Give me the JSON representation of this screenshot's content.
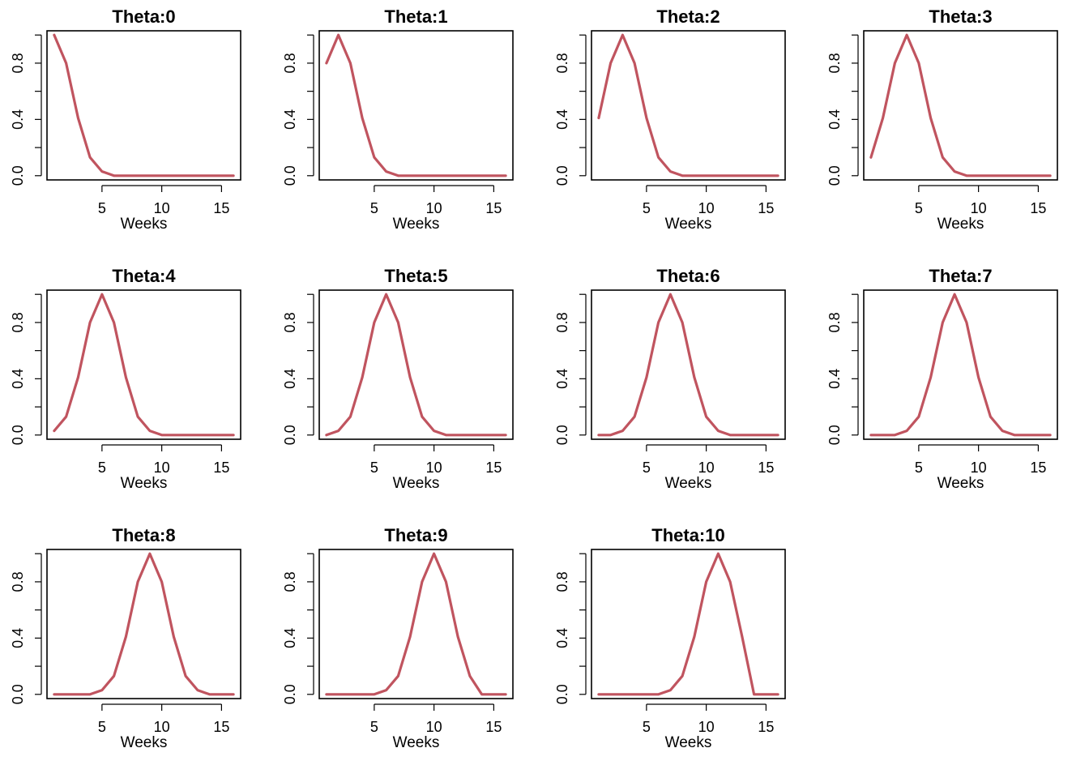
{
  "chart_data": [
    {
      "type": "line",
      "title": "Theta:0",
      "xlabel": "Weeks",
      "ylabel": "",
      "x": [
        1,
        2,
        3,
        4,
        5,
        6,
        7,
        8,
        9,
        10,
        11,
        12,
        13,
        14,
        15,
        16
      ],
      "values": [
        1,
        0.8,
        0.41,
        0.13,
        0.03,
        0,
        0,
        0,
        0,
        0,
        0,
        0,
        0,
        0,
        0,
        0
      ],
      "xticks": [
        5,
        10,
        15
      ],
      "yticks": [
        0.0,
        0.4,
        0.8
      ],
      "ytick_labels": [
        "0.0",
        "0.4",
        "0.8"
      ],
      "xlim": [
        0.4,
        16.6
      ],
      "ylim": [
        -0.03,
        1.03
      ],
      "line_color": "#C0545F"
    },
    {
      "type": "line",
      "title": "Theta:1",
      "xlabel": "Weeks",
      "ylabel": "",
      "x": [
        1,
        2,
        3,
        4,
        5,
        6,
        7,
        8,
        9,
        10,
        11,
        12,
        13,
        14,
        15,
        16
      ],
      "values": [
        0.8,
        1,
        0.8,
        0.41,
        0.13,
        0.03,
        0,
        0,
        0,
        0,
        0,
        0,
        0,
        0,
        0,
        0
      ],
      "xticks": [
        5,
        10,
        15
      ],
      "yticks": [
        0.0,
        0.4,
        0.8
      ],
      "ytick_labels": [
        "0.0",
        "0.4",
        "0.8"
      ],
      "xlim": [
        0.4,
        16.6
      ],
      "ylim": [
        -0.03,
        1.03
      ],
      "line_color": "#C0545F"
    },
    {
      "type": "line",
      "title": "Theta:2",
      "xlabel": "Weeks",
      "ylabel": "",
      "x": [
        1,
        2,
        3,
        4,
        5,
        6,
        7,
        8,
        9,
        10,
        11,
        12,
        13,
        14,
        15,
        16
      ],
      "values": [
        0.41,
        0.8,
        1,
        0.8,
        0.41,
        0.13,
        0.03,
        0,
        0,
        0,
        0,
        0,
        0,
        0,
        0,
        0
      ],
      "xticks": [
        5,
        10,
        15
      ],
      "yticks": [
        0.0,
        0.4,
        0.8
      ],
      "ytick_labels": [
        "0.0",
        "0.4",
        "0.8"
      ],
      "xlim": [
        0.4,
        16.6
      ],
      "ylim": [
        -0.03,
        1.03
      ],
      "line_color": "#C0545F"
    },
    {
      "type": "line",
      "title": "Theta:3",
      "xlabel": "Weeks",
      "ylabel": "",
      "x": [
        1,
        2,
        3,
        4,
        5,
        6,
        7,
        8,
        9,
        10,
        11,
        12,
        13,
        14,
        15,
        16
      ],
      "values": [
        0.13,
        0.41,
        0.8,
        1,
        0.8,
        0.41,
        0.13,
        0.03,
        0,
        0,
        0,
        0,
        0,
        0,
        0,
        0
      ],
      "xticks": [
        5,
        10,
        15
      ],
      "yticks": [
        0.0,
        0.4,
        0.8
      ],
      "ytick_labels": [
        "0.0",
        "0.4",
        "0.8"
      ],
      "xlim": [
        0.4,
        16.6
      ],
      "ylim": [
        -0.03,
        1.03
      ],
      "line_color": "#C0545F"
    },
    {
      "type": "line",
      "title": "Theta:4",
      "xlabel": "Weeks",
      "ylabel": "",
      "x": [
        1,
        2,
        3,
        4,
        5,
        6,
        7,
        8,
        9,
        10,
        11,
        12,
        13,
        14,
        15,
        16
      ],
      "values": [
        0.03,
        0.13,
        0.41,
        0.8,
        1,
        0.8,
        0.41,
        0.13,
        0.03,
        0,
        0,
        0,
        0,
        0,
        0,
        0
      ],
      "xticks": [
        5,
        10,
        15
      ],
      "yticks": [
        0.0,
        0.4,
        0.8
      ],
      "ytick_labels": [
        "0.0",
        "0.4",
        "0.8"
      ],
      "xlim": [
        0.4,
        16.6
      ],
      "ylim": [
        -0.03,
        1.03
      ],
      "line_color": "#C0545F"
    },
    {
      "type": "line",
      "title": "Theta:5",
      "xlabel": "Weeks",
      "ylabel": "",
      "x": [
        1,
        2,
        3,
        4,
        5,
        6,
        7,
        8,
        9,
        10,
        11,
        12,
        13,
        14,
        15,
        16
      ],
      "values": [
        0,
        0.03,
        0.13,
        0.41,
        0.8,
        1,
        0.8,
        0.41,
        0.13,
        0.03,
        0,
        0,
        0,
        0,
        0,
        0
      ],
      "xticks": [
        5,
        10,
        15
      ],
      "yticks": [
        0.0,
        0.4,
        0.8
      ],
      "ytick_labels": [
        "0.0",
        "0.4",
        "0.8"
      ],
      "xlim": [
        0.4,
        16.6
      ],
      "ylim": [
        -0.03,
        1.03
      ],
      "line_color": "#C0545F"
    },
    {
      "type": "line",
      "title": "Theta:6",
      "xlabel": "Weeks",
      "ylabel": "",
      "x": [
        1,
        2,
        3,
        4,
        5,
        6,
        7,
        8,
        9,
        10,
        11,
        12,
        13,
        14,
        15,
        16
      ],
      "values": [
        0,
        0,
        0.03,
        0.13,
        0.41,
        0.8,
        1,
        0.8,
        0.41,
        0.13,
        0.03,
        0,
        0,
        0,
        0,
        0
      ],
      "xticks": [
        5,
        10,
        15
      ],
      "yticks": [
        0.0,
        0.4,
        0.8
      ],
      "ytick_labels": [
        "0.0",
        "0.4",
        "0.8"
      ],
      "xlim": [
        0.4,
        16.6
      ],
      "ylim": [
        -0.03,
        1.03
      ],
      "line_color": "#C0545F"
    },
    {
      "type": "line",
      "title": "Theta:7",
      "xlabel": "Weeks",
      "ylabel": "",
      "x": [
        1,
        2,
        3,
        4,
        5,
        6,
        7,
        8,
        9,
        10,
        11,
        12,
        13,
        14,
        15,
        16
      ],
      "values": [
        0,
        0,
        0,
        0.03,
        0.13,
        0.41,
        0.8,
        1,
        0.8,
        0.41,
        0.13,
        0.03,
        0,
        0,
        0,
        0
      ],
      "xticks": [
        5,
        10,
        15
      ],
      "yticks": [
        0.0,
        0.4,
        0.8
      ],
      "ytick_labels": [
        "0.0",
        "0.4",
        "0.8"
      ],
      "xlim": [
        0.4,
        16.6
      ],
      "ylim": [
        -0.03,
        1.03
      ],
      "line_color": "#C0545F"
    },
    {
      "type": "line",
      "title": "Theta:8",
      "xlabel": "Weeks",
      "ylabel": "",
      "x": [
        1,
        2,
        3,
        4,
        5,
        6,
        7,
        8,
        9,
        10,
        11,
        12,
        13,
        14,
        15,
        16
      ],
      "values": [
        0,
        0,
        0,
        0,
        0.03,
        0.13,
        0.41,
        0.8,
        1,
        0.8,
        0.41,
        0.13,
        0.03,
        0,
        0,
        0
      ],
      "xticks": [
        5,
        10,
        15
      ],
      "yticks": [
        0.0,
        0.4,
        0.8
      ],
      "ytick_labels": [
        "0.0",
        "0.4",
        "0.8"
      ],
      "xlim": [
        0.4,
        16.6
      ],
      "ylim": [
        -0.03,
        1.03
      ],
      "line_color": "#C0545F"
    },
    {
      "type": "line",
      "title": "Theta:9",
      "xlabel": "Weeks",
      "ylabel": "",
      "x": [
        1,
        2,
        3,
        4,
        5,
        6,
        7,
        8,
        9,
        10,
        11,
        12,
        13,
        14,
        15,
        16
      ],
      "values": [
        0,
        0,
        0,
        0,
        0,
        0.03,
        0.13,
        0.41,
        0.8,
        1,
        0.8,
        0.41,
        0.13,
        0,
        0,
        0
      ],
      "xticks": [
        5,
        10,
        15
      ],
      "yticks": [
        0.0,
        0.4,
        0.8
      ],
      "ytick_labels": [
        "0.0",
        "0.4",
        "0.8"
      ],
      "xlim": [
        0.4,
        16.6
      ],
      "ylim": [
        -0.03,
        1.03
      ],
      "line_color": "#C0545F"
    },
    {
      "type": "line",
      "title": "Theta:10",
      "xlabel": "Weeks",
      "ylabel": "",
      "x": [
        1,
        2,
        3,
        4,
        5,
        6,
        7,
        8,
        9,
        10,
        11,
        12,
        13,
        14,
        15,
        16
      ],
      "values": [
        0,
        0,
        0,
        0,
        0,
        0,
        0.03,
        0.13,
        0.41,
        0.8,
        1,
        0.8,
        0.41,
        0,
        0,
        0
      ],
      "xticks": [
        5,
        10,
        15
      ],
      "yticks": [
        0.0,
        0.4,
        0.8
      ],
      "ytick_labels": [
        "0.0",
        "0.4",
        "0.8"
      ],
      "xlim": [
        0.4,
        16.6
      ],
      "ylim": [
        -0.03,
        1.03
      ],
      "line_color": "#C0545F"
    }
  ]
}
